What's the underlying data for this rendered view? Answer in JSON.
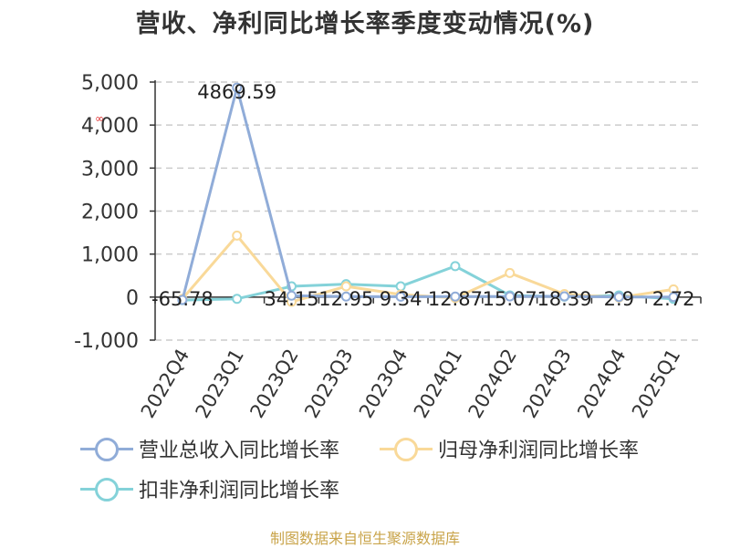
{
  "title": "营收、净利同比增长率季度变动情况(%)",
  "source_text": "制图数据来自恒生聚源数据库",
  "colors": {
    "revenue": "#90acd8",
    "net_profit": "#f9d999",
    "deducted_net_profit": "#84d2d9",
    "axis": "#333333",
    "grid": "#cccccc",
    "source": "#c9a44a",
    "marker": "#e03030"
  },
  "chart_data": {
    "type": "line",
    "title": "营收、净利同比增长率季度变动情况(%)",
    "categories": [
      "2022Q4",
      "2023Q1",
      "2023Q2",
      "2023Q3",
      "2023Q4",
      "2024Q1",
      "2024Q2",
      "2024Q3",
      "2024Q4",
      "2025Q1"
    ],
    "yticks": [
      "5,000",
      "4,000",
      "3,000",
      "2,000",
      "1,000",
      "0",
      "-1,000"
    ],
    "ylim": [
      -1000,
      5000
    ],
    "grid": true,
    "legend_position": "bottom",
    "series": [
      {
        "name": "营业总收入同比增长率",
        "color_key": "revenue",
        "values": [
          -65.78,
          4869.59,
          34.15,
          12.95,
          9.34,
          12.87,
          15.07,
          18.39,
          2.9,
          2.72
        ],
        "labels": [
          "-65.78",
          "4869.59",
          "34.15",
          "12.95",
          "9.34",
          "12.87",
          "15.07",
          "18.39",
          "2.9",
          "2.72"
        ]
      },
      {
        "name": "归母净利润同比增长率",
        "color_key": "net_profit",
        "values": [
          -40,
          1430,
          -110,
          250,
          60,
          -20,
          560,
          70,
          -10,
          180
        ]
      },
      {
        "name": "扣非净利润同比增长率",
        "color_key": "deducted_net_profit",
        "values": [
          -70,
          -40,
          250,
          300,
          250,
          720,
          40,
          10,
          40,
          -40
        ]
      }
    ]
  }
}
